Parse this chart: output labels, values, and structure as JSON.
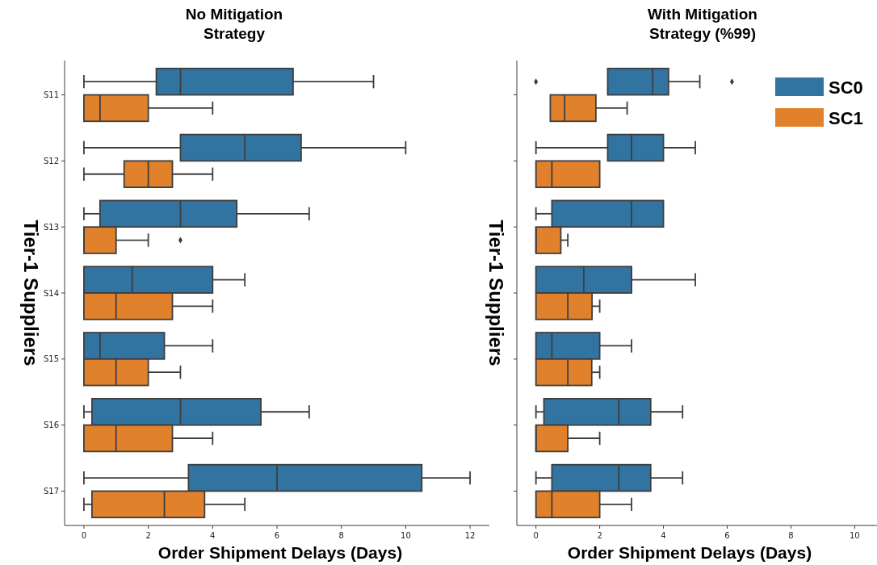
{
  "chart_data": [
    {
      "type": "box",
      "title": "No Mitigation Strategy",
      "xlabel": "Order Shipment Delays (Days)",
      "ylabel": "Tier-1 Suppliers",
      "orientation": "horizontal",
      "categories": [
        "S11",
        "S12",
        "S13",
        "S14",
        "S15",
        "S16",
        "S17"
      ],
      "xlim": [
        -0.6,
        12.6
      ],
      "xticks": [
        0,
        2,
        4,
        6,
        8,
        10,
        12
      ],
      "series": [
        {
          "color": "#3274a1",
          "boxes": [
            {
              "low": 0,
              "q1": 2.25,
              "median": 3,
              "q3": 6.5,
              "high": 9
            },
            {
              "low": 0,
              "q1": 3,
              "median": 5,
              "q3": 6.75,
              "high": 10
            },
            {
              "low": 0,
              "q1": 0.5,
              "median": 3,
              "q3": 4.75,
              "high": 7
            },
            {
              "low": 0,
              "q1": 0,
              "median": 1.5,
              "q3": 4,
              "high": 5
            },
            {
              "low": 0,
              "q1": 0,
              "median": 0.5,
              "q3": 2.5,
              "high": 4
            },
            {
              "low": 0,
              "q1": 0.25,
              "median": 3,
              "q3": 5.5,
              "high": 7
            },
            {
              "low": 0,
              "q1": 3.25,
              "median": 6,
              "q3": 10.5,
              "high": 12
            }
          ]
        },
        {
          "color": "#e1812c",
          "boxes": [
            {
              "low": 0,
              "q1": 0,
              "median": 0.5,
              "q3": 2,
              "high": 4
            },
            {
              "low": 0,
              "q1": 1.25,
              "median": 2,
              "q3": 2.75,
              "high": 4
            },
            {
              "low": 0,
              "q1": 0,
              "median": 0,
              "q3": 1,
              "high": 2,
              "outliers": [
                3
              ]
            },
            {
              "low": 0,
              "q1": 0,
              "median": 1,
              "q3": 2.75,
              "high": 4
            },
            {
              "low": 0,
              "q1": 0,
              "median": 1,
              "q3": 2,
              "high": 3
            },
            {
              "low": 0,
              "q1": 0,
              "median": 1,
              "q3": 2.75,
              "high": 4
            },
            {
              "low": 0,
              "q1": 0.25,
              "median": 2.5,
              "q3": 3.75,
              "high": 5
            }
          ]
        }
      ]
    },
    {
      "type": "box",
      "title": "With Mitigation Strategy (%99)",
      "xlabel": "Order Shipment Delays (Days)",
      "ylabel": "Tier-1 Suppliers",
      "orientation": "horizontal",
      "categories": [
        null,
        null,
        null,
        null,
        null,
        null,
        null
      ],
      "tick_labels": "x",
      "xlim": [
        -0.6,
        10.7
      ],
      "xticks": [
        0,
        2,
        4,
        6,
        8,
        10
      ],
      "legend": "top right",
      "series": [
        {
          "name": "SC0",
          "color": "#3274a1",
          "boxes": [
            {
              "low": 2.25,
              "q1": 2.25,
              "median": 3.66,
              "q3": 4.16,
              "high": 5.14,
              "outliers": [
                0,
                6.15
              ]
            },
            {
              "low": 0,
              "q1": 2.25,
              "median": 3,
              "q3": 4,
              "high": 5
            },
            {
              "low": 0,
              "q1": 0.5,
              "median": 3,
              "q3": 4,
              "high": 4
            },
            {
              "low": 0,
              "q1": 0,
              "median": 1.5,
              "q3": 3,
              "high": 5
            },
            {
              "low": 0,
              "q1": 0,
              "median": 0.5,
              "q3": 2,
              "high": 3
            },
            {
              "low": 0,
              "q1": 0.25,
              "median": 2.6,
              "q3": 3.6,
              "high": 4.6
            },
            {
              "low": 0,
              "q1": 0.5,
              "median": 2.6,
              "q3": 3.6,
              "high": 4.6
            }
          ]
        },
        {
          "name": "SC1",
          "color": "#e1812c",
          "boxes": [
            {
              "low": 0.45,
              "q1": 0.45,
              "median": 0.9,
              "q3": 1.88,
              "high": 2.86
            },
            {
              "low": 0,
              "q1": 0,
              "median": 0.5,
              "q3": 2,
              "high": 2
            },
            {
              "low": 0,
              "q1": 0,
              "median": 0,
              "q3": 0.78,
              "high": 1
            },
            {
              "low": 0,
              "q1": 0,
              "median": 1,
              "q3": 1.76,
              "high": 2
            },
            {
              "low": 0,
              "q1": 0,
              "median": 1,
              "q3": 1.75,
              "high": 2
            },
            {
              "low": 0,
              "q1": 0,
              "median": 0,
              "q3": 1,
              "high": 2
            },
            {
              "low": 0,
              "q1": 0,
              "median": 0.5,
              "q3": 2,
              "high": 3
            }
          ]
        }
      ]
    }
  ]
}
